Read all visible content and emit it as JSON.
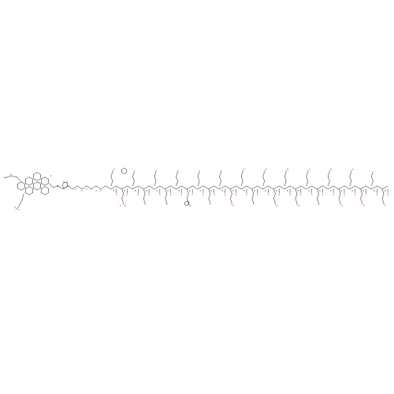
{
  "figure": {
    "type": "chemical-structure",
    "background": "#ffffff",
    "colors": {
      "bond": "#000000",
      "oxygen": "#e00000",
      "nitrogen": "#1a1adc"
    }
  },
  "structure": {
    "triterpenoid_terminus": {
      "atoms": [
        "O",
        "O",
        "O",
        "O",
        "O",
        "O"
      ]
    },
    "linker": {
      "atoms": [
        "O",
        "N",
        "N",
        "N",
        "O",
        "O",
        "O",
        "O",
        "O"
      ]
    },
    "peptide": {
      "residues": [
        {
          "side": "up",
          "atoms": [
            "O",
            "N",
            "O",
            "O"
          ]
        },
        {
          "side": "down",
          "atoms": [
            "O",
            "N",
            "O",
            "N",
            "O"
          ]
        },
        {
          "side": "up",
          "atoms": [
            "O",
            "N",
            "O"
          ]
        },
        {
          "side": "down",
          "atoms": [
            "O",
            "N",
            "O"
          ]
        },
        {
          "side": "up",
          "atoms": [
            "O",
            "N",
            "O"
          ]
        },
        {
          "side": "down",
          "atoms": [
            "O",
            "N",
            "O"
          ]
        },
        {
          "side": "up",
          "atoms": [
            "O",
            "N",
            "O"
          ]
        },
        {
          "side": "down",
          "atoms": [
            "O",
            "N",
            "N",
            "N"
          ]
        },
        {
          "side": "up",
          "atoms": [
            "O",
            "N",
            "O"
          ]
        },
        {
          "side": "down",
          "atoms": [
            "O",
            "N",
            "O"
          ]
        },
        {
          "side": "up",
          "atoms": [
            "O",
            "N",
            "O"
          ]
        },
        {
          "side": "down",
          "atoms": [
            "O",
            "N",
            "O",
            "O"
          ]
        },
        {
          "side": "up",
          "atoms": [
            "O",
            "N",
            "O",
            "O"
          ]
        },
        {
          "side": "down",
          "atoms": [
            "O",
            "N",
            "O"
          ]
        },
        {
          "side": "up",
          "atoms": [
            "O",
            "N",
            "O",
            "N"
          ]
        },
        {
          "side": "down",
          "atoms": [
            "O",
            "N",
            "O",
            "N"
          ]
        },
        {
          "side": "up",
          "atoms": [
            "O",
            "N",
            "O",
            "N"
          ]
        },
        {
          "side": "down",
          "atoms": [
            "O",
            "N",
            "O",
            "N"
          ]
        },
        {
          "side": "up",
          "atoms": [
            "O",
            "N",
            "O",
            "O"
          ]
        },
        {
          "side": "down",
          "atoms": [
            "O",
            "N",
            "N"
          ]
        },
        {
          "side": "up",
          "atoms": [
            "O",
            "N",
            "O",
            "N"
          ]
        },
        {
          "side": "down",
          "atoms": [
            "O",
            "N",
            "O",
            "O"
          ]
        },
        {
          "side": "up",
          "atoms": [
            "O",
            "N",
            "O",
            "O"
          ]
        },
        {
          "side": "down",
          "atoms": [
            "O",
            "N",
            "O",
            "O"
          ]
        },
        {
          "side": "up",
          "atoms": [
            "O",
            "N"
          ]
        },
        {
          "side": "down",
          "atoms": [
            "O",
            "N",
            "O",
            "O"
          ]
        }
      ]
    }
  }
}
